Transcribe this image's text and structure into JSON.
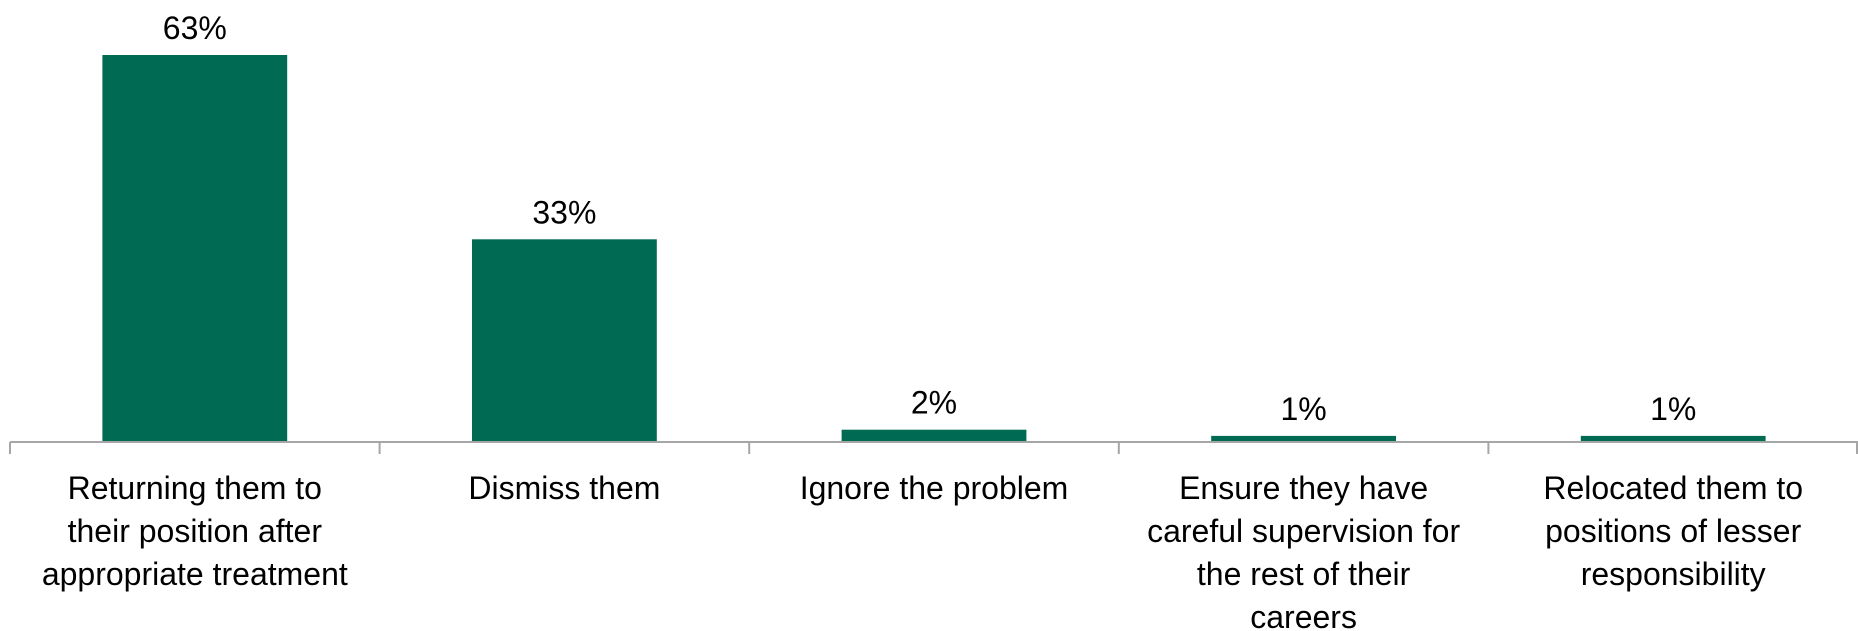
{
  "chart_data": {
    "type": "bar",
    "categories": [
      [
        "Returning them to",
        "their position after",
        "appropriate treatment"
      ],
      [
        "Dismiss them"
      ],
      [
        "Ignore the problem"
      ],
      [
        "Ensure they have",
        "careful supervision for",
        "the rest of their",
        "careers"
      ],
      [
        "Relocated them to",
        "positions of lesser",
        "responsibility"
      ]
    ],
    "values": [
      63,
      33,
      2,
      1,
      1
    ],
    "data_labels": [
      "63%",
      "33%",
      "2%",
      "1%",
      "1%"
    ],
    "unit": "%",
    "ylim": [
      0,
      63
    ],
    "grid": false,
    "legend": "none",
    "bar_color": "#006b52",
    "axis_color": "#a6a6a6"
  }
}
